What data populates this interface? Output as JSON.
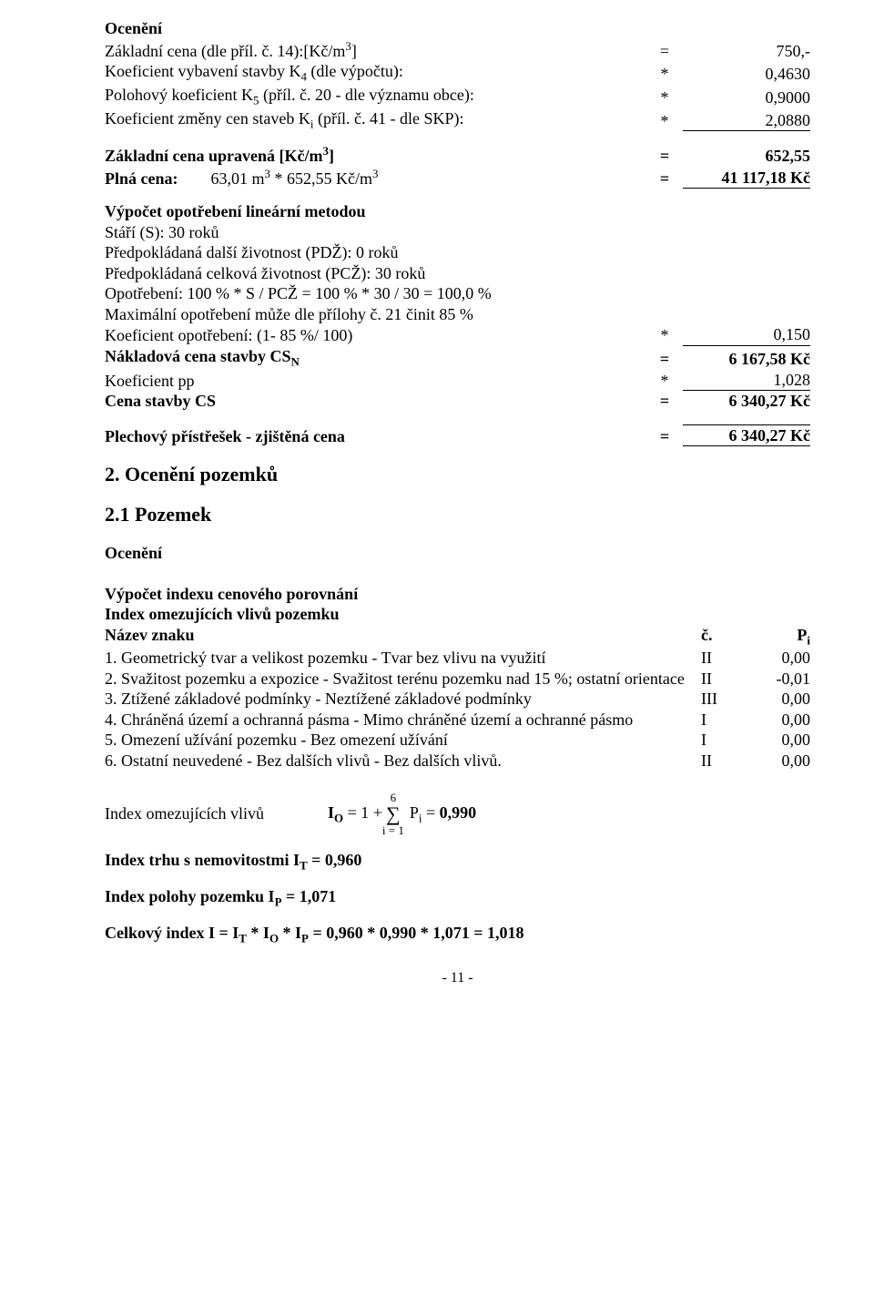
{
  "oceneni_title": "Ocenění",
  "rows1": [
    {
      "label": "Základní cena (dle příl. č. 14):",
      "unit": "[Kč/m",
      "unit_sup": "3",
      "unit_end": "]",
      "op": "=",
      "val": "750,-",
      "cls": ""
    },
    {
      "label": "Koeficient vybavení stavby K",
      "sub": "4",
      "label_end": " (dle výpočtu):",
      "op": "*",
      "val": "0,4630",
      "cls": ""
    },
    {
      "label": "Polohový koeficient K",
      "sub": "5",
      "label_end": " (příl. č. 20 - dle významu obce):",
      "op": "*",
      "val": "0,9000",
      "cls": ""
    },
    {
      "label": "Koeficient změny cen staveb K",
      "sub": "i",
      "label_end": " (příl. č. 41 - dle SKP):",
      "op": "*",
      "val": "2,0880",
      "cls": "u-bot"
    }
  ],
  "rows2": [
    {
      "bold": true,
      "label": "Základní cena upravená [Kč/m",
      "sup": "3",
      "label_end": "]",
      "op": "=",
      "val": "652,55",
      "cls": ""
    },
    {
      "bold": true,
      "label": "Plná cena:",
      "label2": "63,01 m",
      "sup": "3",
      "label_end": " * 652,55 Kč/m",
      "sup2": "3",
      "op": "=",
      "val": "41 117,18 Kč",
      "cls": "u-bot"
    }
  ],
  "vypocet_title": "Výpočet opotřebení lineární metodou",
  "life_lines": [
    "Stáří (S): 30 roků",
    "Předpokládaná další životnost (PDŽ): 0 roků",
    "Předpokládaná celková životnost (PCŽ): 30 roků",
    "Opotřebení: 100 % * S / PCŽ = 100 % * 30 / 30 = 100,0 %",
    "Maximální opotřebení může dle přílohy č. 21 činit 85 %"
  ],
  "rows3": [
    {
      "bold": false,
      "label": "Koeficient opotřebení: (1- 85 %/ 100)",
      "op": "*",
      "val": "0,150",
      "cls": "u-bot"
    },
    {
      "bold": true,
      "label": "Nákladová cena stavby CS",
      "sub": "N",
      "op": "=",
      "val": "6 167,58 Kč",
      "cls": ""
    },
    {
      "bold": false,
      "label": "Koeficient pp",
      "op": "*",
      "val": "1,028",
      "cls": "u-bot"
    },
    {
      "bold": true,
      "label": "Cena stavby CS",
      "op": "=",
      "val": "6 340,27 Kč",
      "cls": ""
    }
  ],
  "final_row": {
    "bold": true,
    "label": "Plechový přístřešek - zjištěná cena",
    "op": "=",
    "val": "6 340,27 Kč",
    "cls": "u-top u-bot"
  },
  "h2a": "2. Ocenění pozemků",
  "h2b": "2.1 Pozemek",
  "vypocet2": "Výpočet indexu cenového porovnání",
  "idx_title": "Index omezujících vlivů pozemku",
  "idx_header": {
    "name": "Název znaku",
    "c": "č.",
    "p": "P",
    "psub": "i"
  },
  "idx_items": [
    {
      "text": "1. Geometrický tvar a velikost pozemku - Tvar bez vlivu na využití",
      "c": "II",
      "p": "0,00"
    },
    {
      "text": "2. Svažitost pozemku a expozice - Svažitost terénu pozemku nad 15 %; ostatní orientace",
      "c": "II",
      "p": "-0,01"
    },
    {
      "text": "3. Ztížené základové podmínky - Neztížené základové podmínky",
      "c": "III",
      "p": "0,00"
    },
    {
      "text": "4. Chráněná území a ochranná pásma - Mimo chráněné území a ochranné pásmo",
      "c": "I",
      "p": "0,00"
    },
    {
      "text": "5. Omezení užívání pozemku - Bez omezení užívání",
      "c": "I",
      "p": "0,00"
    },
    {
      "text": "6. Ostatní neuvedené - Bez dalších vlivů - Bez dalších vlivů.",
      "c": "II",
      "p": "0,00"
    }
  ],
  "io_label": "Index omezujících vlivů",
  "io_prefix": "I",
  "io_prefix_sub": "O",
  " io_eq": " = 1 + ",
  "sigma_top": "6",
  "sigma_bot": "i = 1",
  "io_after": " P",
  "io_after_sub": "i",
  "io_value": " = ",
  "io_bold": "0,990",
  "it_line_pre": "Index trhu s nemovitostmi I",
  "it_sub": "T",
  "it_eq": " = ",
  "it_val": "0,960",
  "ip_line_pre": "Index polohy pozemku I",
  "ip_sub": "P",
  "ip_eq": " = ",
  "ip_val": "1,071",
  "final_pre": "Celkový index I = I",
  "final_t": "T",
  "final_m1": " * I",
  "final_o": "O",
  "final_m2": " * I",
  "final_p": "P",
  "final_eq": " = 0,960 * 0,990 * 1,071 = ",
  "final_val": "1,018",
  "page": "- 11 -"
}
